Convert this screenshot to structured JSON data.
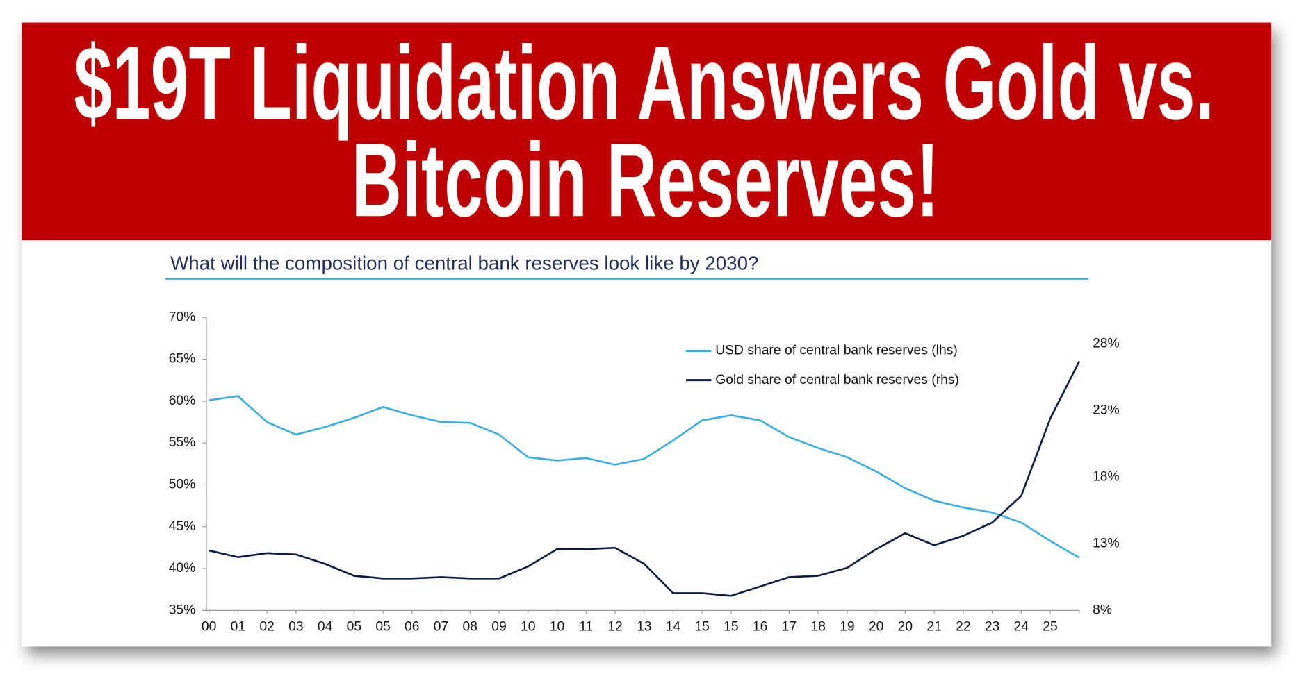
{
  "header": {
    "title_lines": [
      "$19T Liquidation Answers Gold vs.",
      "Bitcoin Reserves!"
    ]
  },
  "chart_data": {
    "type": "line",
    "title": "What will the composition of central bank reserves look like by 2030?",
    "categories": [
      "00",
      "01",
      "02",
      "03",
      "04",
      "05",
      "05",
      "06",
      "07",
      "08",
      "09",
      "10",
      "10",
      "11",
      "12",
      "13",
      "14",
      "15",
      "15",
      "16",
      "17",
      "18",
      "19",
      "20",
      "20",
      "21",
      "22",
      "23",
      "24",
      "25",
      null
    ],
    "series": [
      {
        "name": "USD share of central bank reserves (lhs)",
        "color": "#3aaee0",
        "values": [
          60.1,
          60.6,
          57.5,
          56.0,
          56.9,
          58.0,
          59.3,
          58.3,
          57.5,
          57.4,
          56.0,
          53.3,
          52.9,
          53.2,
          52.4,
          53.1,
          55.3,
          57.7,
          58.3,
          57.7,
          55.7,
          54.4,
          53.3,
          51.6,
          49.6,
          48.1,
          47.3,
          46.7,
          45.5,
          43.3,
          41.3
        ]
      },
      {
        "name": "Gold share of central bank reserves (rhs)",
        "color": "#0c1d45",
        "axis": "y2",
        "values": [
          12.5,
          12.0,
          12.3,
          12.2,
          11.5,
          10.6,
          10.4,
          10.4,
          10.5,
          10.4,
          10.4,
          11.3,
          12.6,
          12.6,
          12.7,
          11.5,
          9.3,
          9.3,
          9.1,
          9.8,
          10.5,
          10.6,
          11.2,
          12.6,
          13.8,
          12.9,
          13.6,
          14.6,
          16.6,
          22.4,
          26.7
        ]
      }
    ],
    "ylim": [
      35,
      70
    ],
    "yticks": [
      {
        "value": 35,
        "label": "35%"
      },
      {
        "value": 40,
        "label": "40%"
      },
      {
        "value": 45,
        "label": "45%"
      },
      {
        "value": 50,
        "label": "50%"
      },
      {
        "value": 55,
        "label": "55%"
      },
      {
        "value": 60,
        "label": "60%"
      },
      {
        "value": 65,
        "label": "65%"
      },
      {
        "value": 70,
        "label": "70%"
      }
    ],
    "y2lim": [
      8,
      30
    ],
    "y2ticks": [
      {
        "value": 8,
        "label": "8%"
      },
      {
        "value": 13,
        "label": "13%"
      },
      {
        "value": 18,
        "label": "18%"
      },
      {
        "value": 23,
        "label": "23%"
      },
      {
        "value": 28,
        "label": "28%"
      }
    ],
    "legend": "upper right"
  }
}
